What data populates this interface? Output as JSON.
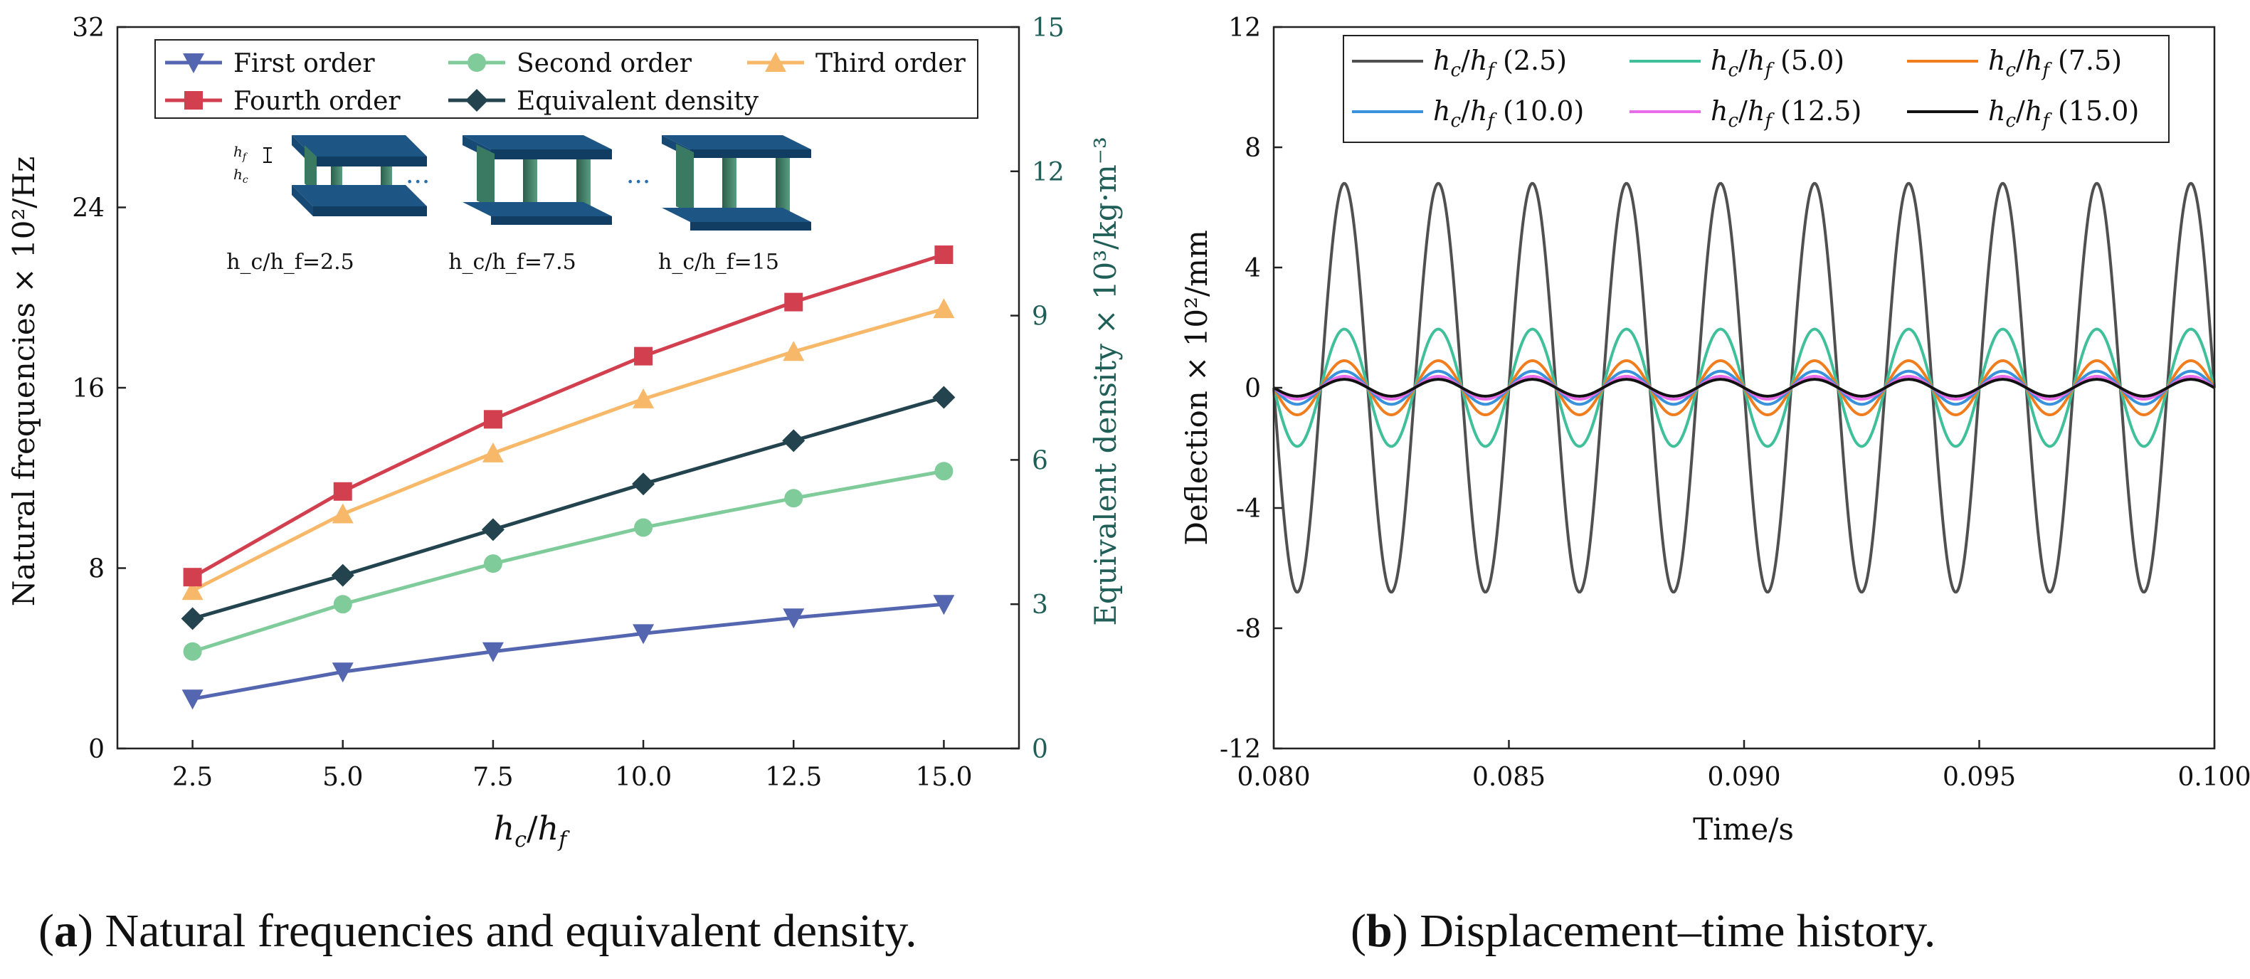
{
  "chart_data": [
    {
      "id": "a",
      "type": "line",
      "caption": {
        "label": "a",
        "text": "Natural frequencies and equivalent density."
      },
      "xlabel": {
        "italic1": "h",
        "sub1": "c",
        "sep": "/",
        "italic2": "h",
        "sub2": "f"
      },
      "ylabel": "Natural frequencies × 10²/Hz",
      "ylabel2": "Equivalent density × 10³/kg·m⁻³",
      "x_ticks": [
        "2.5",
        "5.0",
        "7.5",
        "10.0",
        "12.5",
        "15.0"
      ],
      "y_ticks": [
        "0",
        "8",
        "16",
        "24",
        "32"
      ],
      "y2_ticks": [
        "0",
        "3",
        "6",
        "9",
        "12",
        "15"
      ],
      "xlim": [
        1.25,
        16.25
      ],
      "ylim": [
        0,
        32
      ],
      "y2lim": [
        0,
        15
      ],
      "x": [
        2.5,
        5.0,
        7.5,
        10.0,
        12.5,
        15.0
      ],
      "series": [
        {
          "name": "First order",
          "color": "#5566b0",
          "marker": "triangle-down",
          "axis": "left",
          "values": [
            2.2,
            3.4,
            4.3,
            5.1,
            5.8,
            6.4
          ]
        },
        {
          "name": "Second order",
          "color": "#7fcc9a",
          "marker": "circle",
          "axis": "left",
          "values": [
            4.3,
            6.4,
            8.2,
            9.8,
            11.1,
            12.3
          ]
        },
        {
          "name": "Third order",
          "color": "#f7b969",
          "marker": "triangle-up",
          "axis": "left",
          "values": [
            7.0,
            10.4,
            13.1,
            15.5,
            17.6,
            19.5
          ]
        },
        {
          "name": "Fourth order",
          "color": "#d2404f",
          "marker": "square",
          "axis": "left",
          "values": [
            7.6,
            11.4,
            14.6,
            17.4,
            19.8,
            21.9
          ]
        },
        {
          "name": "Equivalent density",
          "color": "#23444f",
          "marker": "diamond",
          "axis": "right",
          "values": [
            2.7,
            3.6,
            4.55,
            5.5,
            6.4,
            7.3
          ]
        }
      ],
      "legend": "top",
      "inset": {
        "labels": [
          "h_c/h_f=2.5",
          "h_c/h_f=7.5",
          "h_c/h_f=15"
        ],
        "dim_labels": [
          "h_f",
          "h_c"
        ],
        "ellipsis": "..."
      }
    },
    {
      "id": "b",
      "type": "line",
      "caption": {
        "label": "b",
        "text": "Displacement–time history."
      },
      "xlabel": "Time/s",
      "ylabel": "Deflection × 10²/mm",
      "x_ticks": [
        "0.080",
        "0.085",
        "0.090",
        "0.095",
        "0.100"
      ],
      "y_ticks": [
        "-12",
        "-8",
        "-4",
        "0",
        "4",
        "8",
        "12"
      ],
      "xlim": [
        0.08,
        0.1
      ],
      "ylim": [
        -12,
        12
      ],
      "period_s": 0.002,
      "first_peak_s": 0.0815,
      "series": [
        {
          "name": "h_c/h_f (2.5)",
          "ratio": "2.5",
          "color": "#505050",
          "amplitude": 6.8
        },
        {
          "name": "h_c/h_f (5.0)",
          "ratio": "5.0",
          "color": "#3fbf9a",
          "amplitude": 1.95
        },
        {
          "name": "h_c/h_f (7.5)",
          "ratio": "7.5",
          "color": "#f07d1e",
          "amplitude": 0.9
        },
        {
          "name": "h_c/h_f (10.0)",
          "ratio": "10.0",
          "color": "#3a92db",
          "amplitude": 0.55
        },
        {
          "name": "h_c/h_f (12.5)",
          "ratio": "12.5",
          "color": "#ea6cea",
          "amplitude": 0.38
        },
        {
          "name": "h_c/h_f (15.0)",
          "ratio": "15.0",
          "color": "#111111",
          "amplitude": 0.28
        }
      ],
      "legend": "top"
    }
  ]
}
